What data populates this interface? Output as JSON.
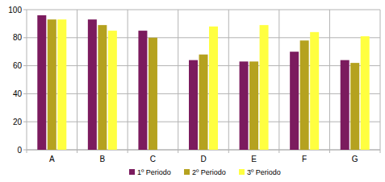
{
  "chart_data": {
    "type": "bar",
    "categories": [
      "A",
      "B",
      "C",
      "D",
      "E",
      "F",
      "G"
    ],
    "series": [
      {
        "name": "1º Periodo",
        "color": "#7b1b5e",
        "values": [
          96,
          93,
          85,
          64,
          63,
          70,
          64
        ]
      },
      {
        "name": "2º Periodo",
        "color": "#b5a21f",
        "values": [
          93,
          89,
          80,
          68,
          63,
          78,
          62
        ]
      },
      {
        "name": "3º Periodo",
        "color": "#ffff40",
        "values": [
          93,
          85,
          null,
          88,
          89,
          84,
          81
        ]
      }
    ],
    "ylim": [
      0,
      100
    ],
    "yticks": [
      0,
      20,
      40,
      60,
      80,
      100
    ],
    "grid": true,
    "legend": "bottom"
  }
}
